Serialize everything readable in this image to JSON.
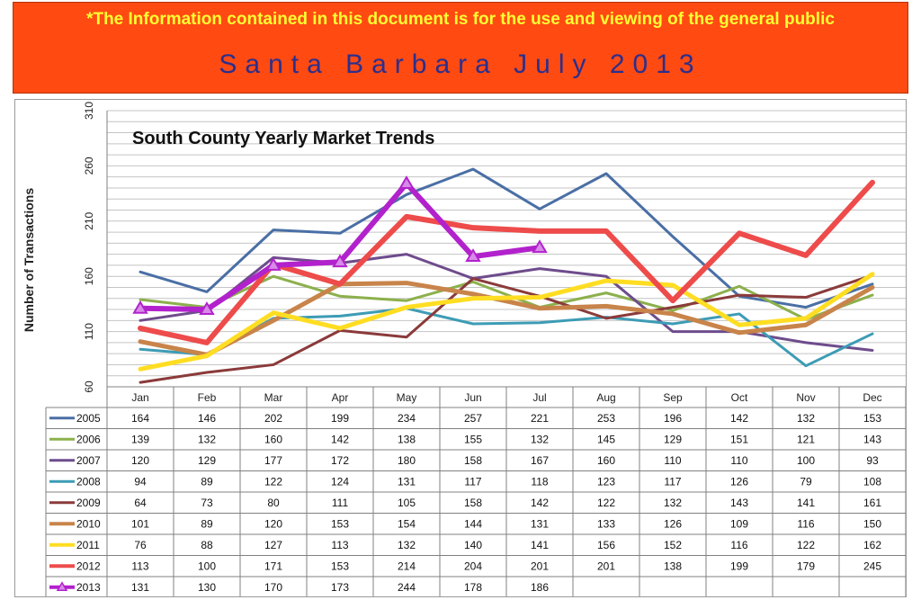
{
  "header": {
    "notice": "*The Information contained in this document is for the use and viewing of the general public",
    "title": "Santa Barbara July 2013"
  },
  "colors": {
    "banner_bg": "#ff4a12",
    "banner_notice": "#ffff33",
    "banner_title": "#2b2f8c"
  },
  "chart_data": {
    "type": "line",
    "title": "South County Yearly Market Trends",
    "xlabel": "",
    "ylabel": "Number of Transactions",
    "ylim": [
      60,
      310
    ],
    "yticks": [
      60,
      110,
      160,
      210,
      260,
      310
    ],
    "grid": true,
    "categories": [
      "Jan",
      "Feb",
      "Mar",
      "Apr",
      "May",
      "Jun",
      "Jul",
      "Aug",
      "Sep",
      "Oct",
      "Nov",
      "Dec"
    ],
    "series": [
      {
        "name": "2005",
        "color": "#4a6fa5",
        "width": 3,
        "values": [
          164,
          146,
          202,
          199,
          234,
          257,
          221,
          253,
          196,
          142,
          132,
          153
        ]
      },
      {
        "name": "2006",
        "color": "#8cb04c",
        "width": 3,
        "values": [
          139,
          132,
          160,
          142,
          138,
          155,
          132,
          145,
          129,
          151,
          121,
          143
        ]
      },
      {
        "name": "2007",
        "color": "#6e4c8c",
        "width": 3,
        "values": [
          120,
          129,
          177,
          172,
          180,
          158,
          167,
          160,
          110,
          110,
          100,
          93
        ]
      },
      {
        "name": "2008",
        "color": "#3d9cb5",
        "width": 3,
        "values": [
          94,
          89,
          122,
          124,
          131,
          117,
          118,
          123,
          117,
          126,
          79,
          108
        ]
      },
      {
        "name": "2009",
        "color": "#8b3a3a",
        "width": 3,
        "values": [
          64,
          73,
          80,
          111,
          105,
          158,
          142,
          122,
          132,
          143,
          141,
          161
        ]
      },
      {
        "name": "2010",
        "color": "#c8844a",
        "width": 5,
        "values": [
          101,
          89,
          120,
          153,
          154,
          144,
          131,
          133,
          126,
          109,
          116,
          150
        ]
      },
      {
        "name": "2011",
        "color": "#ffdd22",
        "width": 5,
        "values": [
          76,
          88,
          127,
          113,
          132,
          140,
          141,
          156,
          152,
          116,
          122,
          162
        ]
      },
      {
        "name": "2012",
        "color": "#ee4b4b",
        "width": 6,
        "values": [
          113,
          100,
          171,
          153,
          214,
          204,
          201,
          201,
          138,
          199,
          179,
          245
        ]
      },
      {
        "name": "2013",
        "color": "#b222cc",
        "width": 6,
        "marker": "triangle",
        "values": [
          131,
          130,
          170,
          173,
          244,
          178,
          186,
          null,
          null,
          null,
          null,
          null
        ]
      }
    ]
  }
}
